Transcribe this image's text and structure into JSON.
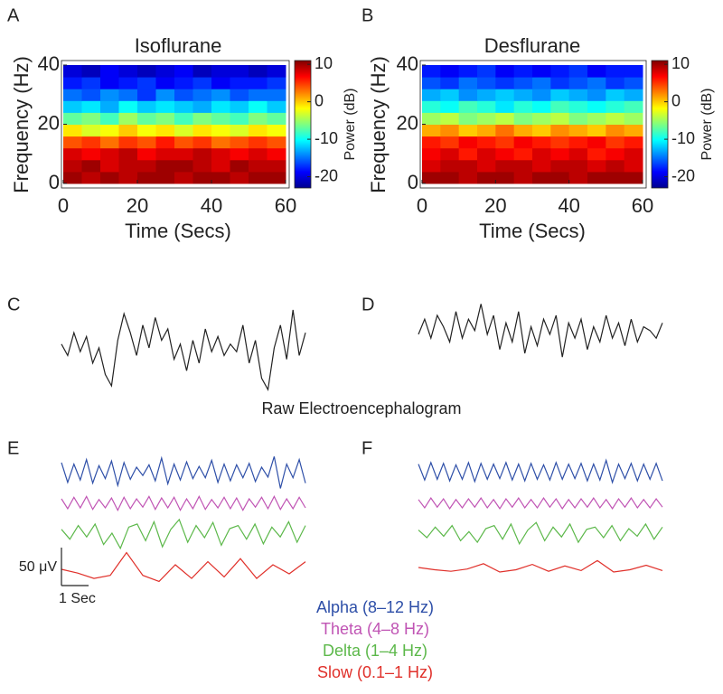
{
  "chart_data": [
    {
      "type": "heatmap",
      "panel": "A",
      "title": "Isoflurane",
      "x_label": "Time (Secs)",
      "y_label": "Frequency (Hz)",
      "colorbar_label": "Power (dB)",
      "xbins": [
        0,
        5,
        10,
        15,
        20,
        25,
        30,
        35,
        40,
        45,
        50,
        55,
        60
      ],
      "ybins": [
        0,
        4,
        8,
        12,
        16,
        20,
        24,
        28,
        32,
        36,
        40
      ],
      "xlim": [
        0,
        60
      ],
      "ylim": [
        0,
        40
      ],
      "xticks": [
        0,
        20,
        40,
        60
      ],
      "yticks": [
        0,
        20,
        40
      ],
      "clim": [
        -23,
        11
      ],
      "cticks": [
        10,
        0,
        -10,
        -20
      ],
      "colormap": "jet",
      "values": [
        [
          10,
          9,
          10,
          9,
          10,
          10,
          9,
          10,
          10,
          9,
          10,
          10
        ],
        [
          9,
          10,
          8,
          9,
          9,
          10,
          10,
          9,
          8,
          10,
          9,
          9
        ],
        [
          8,
          7,
          8,
          9,
          7,
          8,
          8,
          9,
          8,
          7,
          8,
          7
        ],
        [
          4,
          5,
          3,
          5,
          4,
          6,
          4,
          5,
          3,
          4,
          5,
          4
        ],
        [
          -1,
          -3,
          -2,
          0,
          -2,
          -1,
          -3,
          -1,
          -2,
          -3,
          -1,
          -2
        ],
        [
          -7,
          -6,
          -8,
          -5,
          -7,
          -6,
          -8,
          -6,
          -7,
          -8,
          -6,
          -7
        ],
        [
          -12,
          -11,
          -13,
          -10,
          -12,
          -11,
          -12,
          -13,
          -11,
          -12,
          -10,
          -12
        ],
        [
          -15,
          -16,
          -14,
          -15,
          -17,
          -14,
          -16,
          -15,
          -14,
          -16,
          -15,
          -15
        ],
        [
          -18,
          -17,
          -19,
          -18,
          -17,
          -19,
          -18,
          -17,
          -19,
          -18,
          -18,
          -17
        ],
        [
          -20,
          -21,
          -19,
          -20,
          -21,
          -20,
          -19,
          -21,
          -20,
          -20,
          -21,
          -20
        ]
      ]
    },
    {
      "type": "heatmap",
      "panel": "B",
      "title": "Desflurane",
      "x_label": "Time (Secs)",
      "y_label": "Frequency (Hz)",
      "colorbar_label": "Power (dB)",
      "xbins": [
        0,
        5,
        10,
        15,
        20,
        25,
        30,
        35,
        40,
        45,
        50,
        55,
        60
      ],
      "ybins": [
        0,
        4,
        8,
        12,
        16,
        20,
        24,
        28,
        32,
        36,
        40
      ],
      "xlim": [
        0,
        60
      ],
      "ylim": [
        0,
        40
      ],
      "xticks": [
        0,
        20,
        40,
        60
      ],
      "yticks": [
        0,
        20,
        40
      ],
      "clim": [
        -23,
        11
      ],
      "cticks": [
        10,
        0,
        -10,
        -20
      ],
      "colormap": "jet",
      "values": [
        [
          10,
          10,
          9,
          10,
          10,
          9,
          10,
          10,
          9,
          10,
          10,
          10
        ],
        [
          8,
          9,
          9,
          8,
          9,
          9,
          8,
          9,
          9,
          8,
          9,
          8
        ],
        [
          7,
          8,
          6,
          8,
          7,
          6,
          8,
          7,
          8,
          6,
          7,
          8
        ],
        [
          6,
          5,
          7,
          6,
          5,
          7,
          6,
          5,
          6,
          7,
          5,
          6
        ],
        [
          1,
          2,
          0,
          1,
          3,
          1,
          0,
          2,
          1,
          0,
          2,
          1
        ],
        [
          -5,
          -4,
          -6,
          -5,
          -4,
          -6,
          -5,
          -4,
          -6,
          -5,
          -4,
          -5
        ],
        [
          -9,
          -10,
          -8,
          -9,
          -11,
          -9,
          -10,
          -8,
          -9,
          -10,
          -9,
          -8
        ],
        [
          -13,
          -12,
          -14,
          -13,
          -12,
          -13,
          -14,
          -12,
          -13,
          -14,
          -12,
          -13
        ],
        [
          -16,
          -17,
          -15,
          -16,
          -17,
          -16,
          -15,
          -17,
          -16,
          -15,
          -17,
          -16
        ],
        [
          -18,
          -19,
          -18,
          -17,
          -19,
          -18,
          -19,
          -18,
          -17,
          -19,
          -18,
          -18
        ]
      ]
    },
    {
      "type": "line",
      "title": "Raw Electroencephalogram",
      "series": [
        {
          "panel": "C",
          "color": "#222222",
          "values": [
            5,
            -10,
            20,
            -5,
            15,
            -20,
            0,
            -35,
            -50,
            10,
            45,
            20,
            -10,
            30,
            0,
            40,
            10,
            25,
            -15,
            5,
            -30,
            10,
            -20,
            25,
            -5,
            15,
            -10,
            5,
            -5,
            30,
            -20,
            10,
            -40,
            -55,
            0,
            30,
            -15,
            50,
            -10,
            20
          ]
        },
        {
          "panel": "D",
          "color": "#222222",
          "values": [
            0,
            20,
            -5,
            25,
            10,
            -10,
            30,
            -5,
            20,
            5,
            40,
            0,
            25,
            -20,
            15,
            -10,
            30,
            -25,
            10,
            -15,
            20,
            0,
            25,
            -30,
            15,
            -5,
            20,
            -20,
            10,
            -10,
            25,
            -5,
            15,
            -15,
            20,
            -10,
            10,
            5,
            -5,
            15
          ]
        }
      ]
    },
    {
      "type": "line",
      "panel": "E",
      "scale_bar": {
        "y": {
          "value": 50,
          "label": "50 μV"
        },
        "x": {
          "value": 1,
          "label": "1 Sec"
        }
      },
      "series": [
        {
          "name": "Alpha (8–12 Hz)",
          "color": "#2e4fa8",
          "values": [
            12,
            -14,
            10,
            -11,
            16,
            -15,
            8,
            -9,
            14,
            -18,
            12,
            -10,
            6,
            -5,
            9,
            -12,
            18,
            -16,
            10,
            -11,
            13,
            -9,
            7,
            -8,
            15,
            -14,
            10,
            -12,
            9,
            -8,
            11,
            -13,
            6,
            -7,
            20,
            -22,
            10,
            -8,
            16,
            -15
          ]
        },
        {
          "name": "Theta (4–8 Hz)",
          "color": "#c054b4",
          "values": [
            6,
            -7,
            8,
            -6,
            9,
            -8,
            5,
            -6,
            7,
            -9,
            8,
            -7,
            6,
            -5,
            9,
            -8,
            7,
            -6,
            8,
            -9,
            6,
            -7,
            9,
            -8,
            5,
            -6,
            8,
            -7,
            7,
            -9,
            6,
            -5,
            8,
            -7,
            9,
            -8,
            6,
            -7,
            8,
            -6
          ]
        },
        {
          "name": "Delta (1–4 Hz)",
          "color": "#5cb84a",
          "values": [
            5,
            -8,
            10,
            -5,
            12,
            -15,
            0,
            -20,
            8,
            12,
            -10,
            15,
            -18,
            5,
            18,
            -12,
            10,
            -6,
            14,
            -16,
            6,
            10,
            -8,
            12,
            -14,
            8,
            -5,
            15,
            -12,
            10
          ]
        },
        {
          "name": "Slow (0.1–1 Hz)",
          "color": "#e0302a",
          "values": [
            0,
            -5,
            -12,
            -8,
            22,
            -8,
            -16,
            6,
            -12,
            10,
            -10,
            14,
            -12,
            6,
            -6,
            10
          ]
        }
      ]
    },
    {
      "type": "line",
      "panel": "F",
      "series": [
        {
          "color": "#2e4fa8",
          "values": [
            10,
            -11,
            12,
            -10,
            11,
            -12,
            9,
            -10,
            12,
            -13,
            11,
            -10,
            10,
            -9,
            12,
            -11,
            10,
            -12,
            11,
            -10,
            9,
            -11,
            12,
            -10,
            10,
            -9,
            11,
            -12,
            10,
            -11,
            15,
            -14,
            10,
            -9,
            11,
            -12,
            10,
            -10,
            11,
            -12
          ]
        },
        {
          "color": "#c054b4",
          "values": [
            5,
            -6,
            7,
            -5,
            6,
            -7,
            5,
            -6,
            6,
            -5,
            7,
            -6,
            5,
            -7,
            6,
            -5,
            7,
            -6,
            5,
            -6,
            7,
            -5,
            6,
            -7,
            5,
            -6,
            6,
            -5,
            7,
            -6,
            5,
            -7,
            6,
            -5,
            7,
            -6,
            5,
            -6,
            6,
            -5
          ]
        },
        {
          "color": "#5cb84a",
          "values": [
            4,
            -6,
            8,
            -4,
            10,
            -10,
            2,
            -12,
            6,
            10,
            -8,
            12,
            -14,
            4,
            14,
            -10,
            8,
            -5,
            12,
            -12,
            5,
            8,
            -6,
            10,
            -10,
            6,
            -4,
            12,
            -8,
            8
          ]
        },
        {
          "color": "#e0302a",
          "values": [
            0,
            -3,
            -5,
            -2,
            5,
            -6,
            -3,
            4,
            -5,
            2,
            -4,
            9,
            -6,
            -3,
            3,
            -4
          ]
        }
      ]
    }
  ]
}
